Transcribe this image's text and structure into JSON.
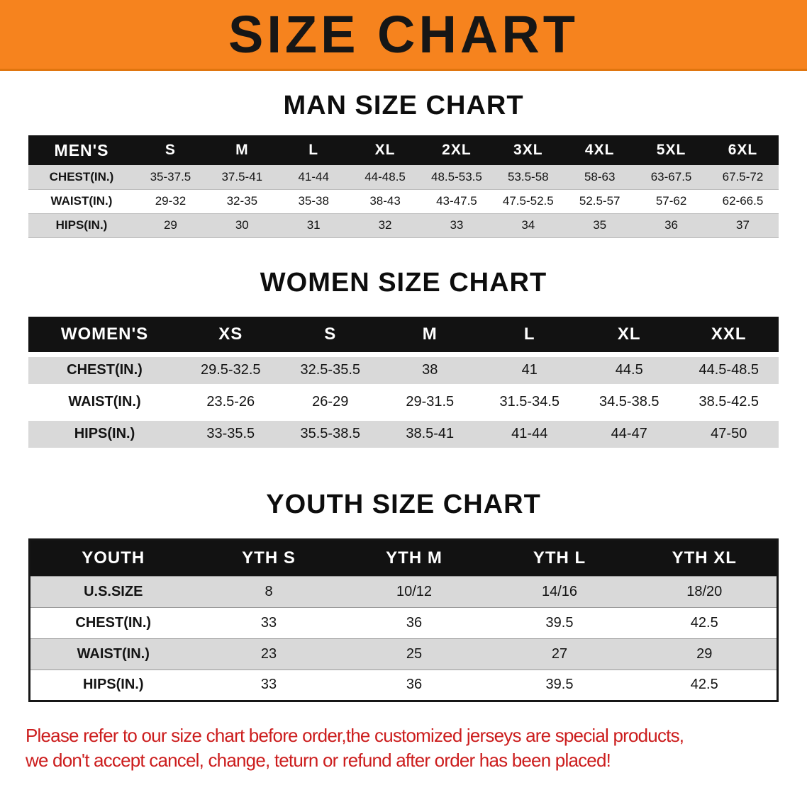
{
  "banner": {
    "title": "SIZE CHART"
  },
  "colors": {
    "banner_bg": "#f6831e",
    "header_bg": "#121212",
    "row_gray": "#d9d9d9",
    "disclaimer_red": "#cc1d1d"
  },
  "sections": [
    {
      "heading": "MAN SIZE CHART",
      "table": {
        "header": [
          "MEN'S",
          "S",
          "M",
          "L",
          "XL",
          "2XL",
          "3XL",
          "4XL",
          "5XL",
          "6XL"
        ],
        "rows": [
          [
            "CHEST(IN.)",
            "35-37.5",
            "37.5-41",
            "41-44",
            "44-48.5",
            "48.5-53.5",
            "53.5-58",
            "58-63",
            "63-67.5",
            "67.5-72"
          ],
          [
            "WAIST(IN.)",
            "29-32",
            "32-35",
            "35-38",
            "38-43",
            "43-47.5",
            "47.5-52.5",
            "52.5-57",
            "57-62",
            "62-66.5"
          ],
          [
            "HIPS(IN.)",
            "29",
            "30",
            "31",
            "32",
            "33",
            "34",
            "35",
            "36",
            "37"
          ]
        ]
      }
    },
    {
      "heading": "WOMEN SIZE CHART",
      "table": {
        "header": [
          "WOMEN'S",
          "XS",
          "S",
          "M",
          "L",
          "XL",
          "XXL"
        ],
        "rows": [
          [
            "CHEST(IN.)",
            "29.5-32.5",
            "32.5-35.5",
            "38",
            "41",
            "44.5",
            "44.5-48.5"
          ],
          [
            "WAIST(IN.)",
            "23.5-26",
            "26-29",
            "29-31.5",
            "31.5-34.5",
            "34.5-38.5",
            "38.5-42.5"
          ],
          [
            "HIPS(IN.)",
            "33-35.5",
            "35.5-38.5",
            "38.5-41",
            "41-44",
            "44-47",
            "47-50"
          ]
        ]
      }
    },
    {
      "heading": "YOUTH SIZE CHART",
      "table": {
        "header": [
          "YOUTH",
          "YTH S",
          "YTH M",
          "YTH L",
          "YTH XL"
        ],
        "rows": [
          [
            "U.S.SIZE",
            "8",
            "10/12",
            "14/16",
            "18/20"
          ],
          [
            "CHEST(IN.)",
            "33",
            "36",
            "39.5",
            "42.5"
          ],
          [
            "WAIST(IN.)",
            "23",
            "25",
            "27",
            "29"
          ],
          [
            "HIPS(IN.)",
            "33",
            "36",
            "39.5",
            "42.5"
          ]
        ]
      }
    }
  ],
  "disclaimer": {
    "line1": "Please refer to our size chart before order,the customized jerseys are special products,",
    "line2": "we don't accept cancel, change, teturn or refund after order has been placed!"
  }
}
